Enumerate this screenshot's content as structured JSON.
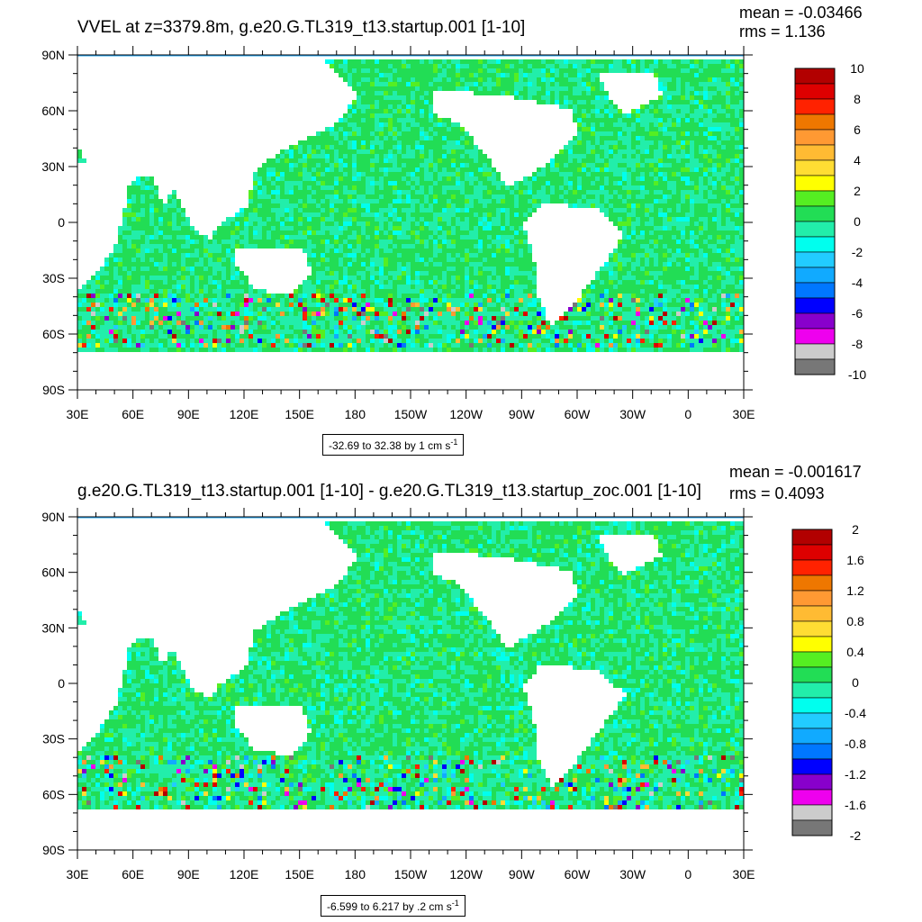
{
  "chart_data": [
    {
      "type": "heatmap",
      "title": "VVEL at z=3379.8m, g.e20.G.TL319_t13.startup.001 [1-10]",
      "mean_label": "mean = -0.03466",
      "rms_label": "rms = 1.136",
      "range_text": "-32.69 to 32.38 by 1 cm s",
      "range_unit_sup": "-1",
      "y_ticks": [
        "90N",
        "60N",
        "30N",
        "0",
        "30S",
        "60S",
        "90S"
      ],
      "x_ticks": [
        "30E",
        "60E",
        "90E",
        "120E",
        "150E",
        "180",
        "150W",
        "120W",
        "90W",
        "60W",
        "30W",
        "0",
        "30E"
      ],
      "colorbar_labels": [
        "10",
        "8",
        "6",
        "4",
        "2",
        "0",
        "-2",
        "-4",
        "-6",
        "-8",
        "-10"
      ],
      "colorbar_colors": [
        "#b20000",
        "#dd0000",
        "#ff2200",
        "#ee7700",
        "#ff9933",
        "#ffbb33",
        "#ffdd33",
        "#ffff00",
        "#55ee22",
        "#22dd55",
        "#22eeaa",
        "#00ffee",
        "#22ccff",
        "#11aaff",
        "#0077ff",
        "#0000ff",
        "#8800cc",
        "#ee00ee",
        "#cccccc",
        "#777777"
      ],
      "colorbar_range": [
        -10,
        10
      ]
    },
    {
      "type": "heatmap",
      "title": "g.e20.G.TL319_t13.startup.001 [1-10] - g.e20.G.TL319_t13.startup_zoc.001 [1-10]",
      "mean_label": "mean = -0.001617",
      "rms_label": "rms = 0.4093",
      "range_text": "-6.599 to 6.217 by .2 cm s",
      "range_unit_sup": "-1",
      "y_ticks": [
        "90N",
        "60N",
        "30N",
        "0",
        "30S",
        "60S",
        "90S"
      ],
      "x_ticks": [
        "30E",
        "60E",
        "90E",
        "120E",
        "150E",
        "180",
        "150W",
        "120W",
        "90W",
        "60W",
        "30W",
        "0",
        "30E"
      ],
      "colorbar_labels": [
        "2",
        "1.6",
        "1.2",
        "0.8",
        "0.4",
        "0",
        "-0.4",
        "-0.8",
        "-1.2",
        "-1.6",
        "-2"
      ],
      "colorbar_colors": [
        "#b20000",
        "#dd0000",
        "#ff2200",
        "#ee7700",
        "#ff9933",
        "#ffbb33",
        "#ffdd33",
        "#ffff00",
        "#55ee22",
        "#22dd55",
        "#22eeaa",
        "#00ffee",
        "#22ccff",
        "#11aaff",
        "#0077ff",
        "#0000ff",
        "#8800cc",
        "#ee00ee",
        "#cccccc",
        "#777777"
      ],
      "colorbar_range": [
        -2,
        2
      ]
    }
  ]
}
